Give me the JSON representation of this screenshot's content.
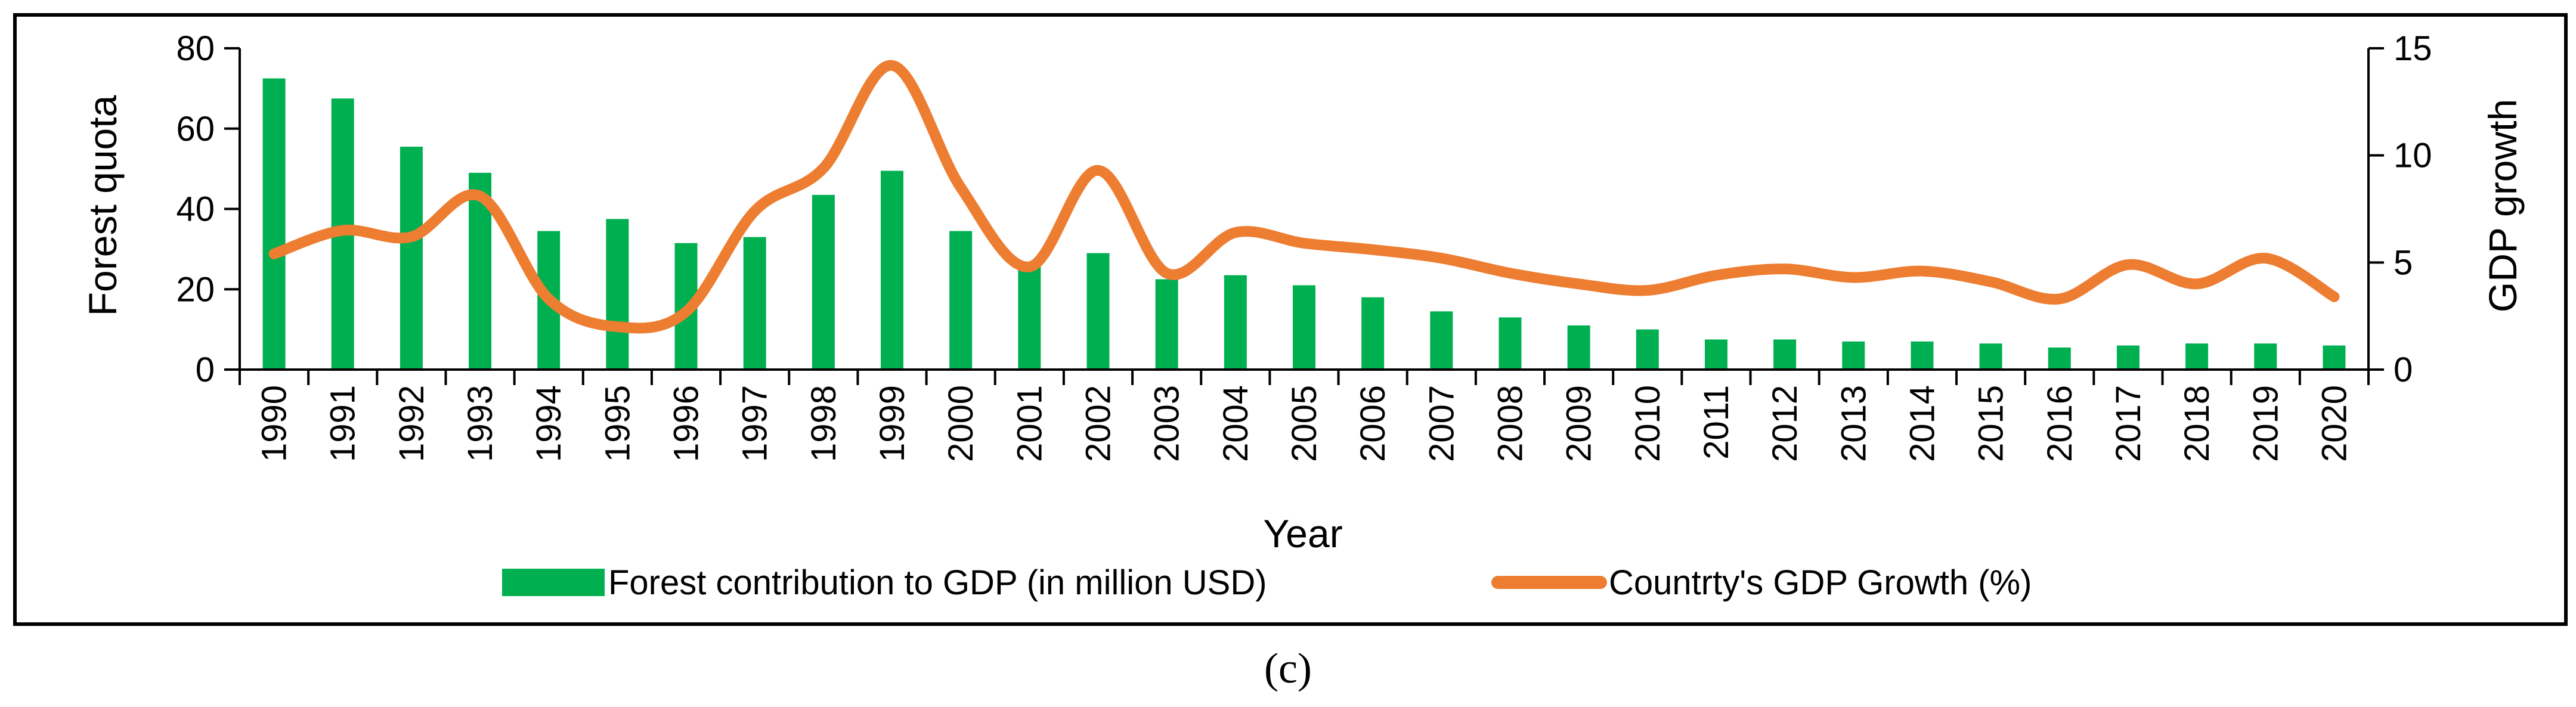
{
  "chart_data": {
    "type": "bar+line",
    "categories": [
      "1990",
      "1991",
      "1992",
      "1993",
      "1994",
      "1995",
      "1996",
      "1997",
      "1998",
      "1999",
      "2000",
      "2001",
      "2002",
      "2003",
      "2004",
      "2005",
      "2006",
      "2007",
      "2008",
      "2009",
      "2010",
      "2011",
      "2012",
      "2013",
      "2014",
      "2015",
      "2016",
      "2017",
      "2018",
      "2019",
      "2020"
    ],
    "series": [
      {
        "name": "Forest contribution to GDP (in million USD)",
        "type": "bar",
        "axis": "left",
        "color": "#00b050",
        "values": [
          72.5,
          67.5,
          55.5,
          49,
          34.5,
          37.5,
          31.5,
          33,
          43.5,
          49.5,
          34.5,
          26,
          29,
          22.5,
          23.5,
          21,
          18,
          14.5,
          13,
          11,
          10,
          7.5,
          7.5,
          7,
          7,
          6.5,
          5.5,
          6,
          6.5,
          6.5,
          6
        ]
      },
      {
        "name": "Countrty's GDP Growth (%)",
        "type": "line",
        "axis": "right",
        "color": "#ed7d31",
        "smooth": true,
        "values": [
          5.4,
          6.5,
          6.2,
          8.1,
          3.3,
          2.0,
          2.7,
          7.4,
          9.4,
          14.2,
          8.5,
          4.8,
          9.3,
          4.5,
          6.4,
          5.9,
          5.6,
          5.2,
          4.5,
          4.0,
          3.7,
          4.4,
          4.7,
          4.3,
          4.6,
          4.1,
          3.3,
          4.9,
          4.0,
          5.2,
          3.4
        ]
      }
    ],
    "xlabel": "Year",
    "ylabel": "Forest quota",
    "y2label": "GDP growth",
    "ylim": [
      0,
      80
    ],
    "y2lim": [
      0,
      15
    ],
    "yticks": [
      0,
      20,
      40,
      60,
      80
    ],
    "y2ticks": [
      0,
      5,
      10,
      15
    ],
    "legend_position": "bottom",
    "grid": false
  },
  "legend": {
    "bar_label": "Forest contribution to GDP (in million USD)",
    "line_label": "Countrty's GDP Growth (%)"
  },
  "panel_label": "(c)"
}
